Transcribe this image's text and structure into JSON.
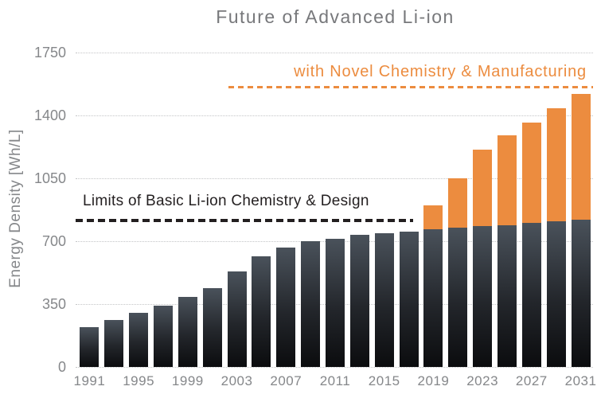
{
  "title": "Future of Advanced Li-ion",
  "yaxis": {
    "label": "Energy Density [Wh/L]"
  },
  "chart_data": {
    "type": "bar",
    "stacked": true,
    "title": "Future of Advanced Li-ion",
    "ylabel": "Energy Density [Wh/L]",
    "xlabel": "",
    "ylim": [
      0,
      1750
    ],
    "yticks": [
      0,
      350,
      700,
      1050,
      1400,
      1750
    ],
    "grid": "dotted-horizontal",
    "x": [
      1991,
      1993,
      1995,
      1997,
      1999,
      2001,
      2003,
      2005,
      2007,
      2009,
      2011,
      2013,
      2015,
      2017,
      2019,
      2021,
      2023,
      2025,
      2027,
      2029,
      2031
    ],
    "x_tick_step": 2,
    "series": [
      {
        "name": "Basic Li-ion Chemistry & Design",
        "gradient": [
          "#4A525B",
          "#23262B",
          "#0B0C0E"
        ],
        "values": [
          220,
          260,
          300,
          340,
          390,
          440,
          530,
          615,
          665,
          700,
          715,
          735,
          745,
          755,
          765,
          775,
          785,
          790,
          800,
          810,
          820
        ]
      },
      {
        "name": "with Novel Chemistry & Manufacturing",
        "color": "#EC8C3F",
        "totals": [
          null,
          null,
          null,
          null,
          null,
          null,
          null,
          null,
          null,
          null,
          null,
          null,
          null,
          null,
          900,
          1050,
          1210,
          1290,
          1360,
          1440,
          1520
        ]
      }
    ]
  },
  "annotations": {
    "limit": {
      "label": "Limits of Basic Li-ion Chemistry & Design",
      "value": 825,
      "color": "#231f20"
    },
    "novel": {
      "label": "with Novel Chemistry & Manufacturing",
      "value": 1565,
      "color": "#EC8C3F"
    }
  },
  "colors": {
    "title_text": "#77787b",
    "axis_text": "#85878a",
    "gridline": "#c4c5c7",
    "bar_dark_top": "#4A525B",
    "bar_dark_bottom": "#0B0C0E",
    "bar_orange": "#EC8C3F"
  }
}
